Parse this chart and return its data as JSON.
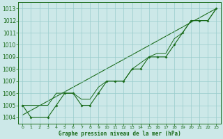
{
  "background_color": "#cce8e8",
  "grid_color": "#99cccc",
  "line_color": "#1a6b1a",
  "xlabel": "Graphe pression niveau de la mer (hPa)",
  "ylim": [
    1003.5,
    1013.5
  ],
  "xlim": [
    -0.5,
    23.5
  ],
  "yticks": [
    1004,
    1005,
    1006,
    1007,
    1008,
    1009,
    1010,
    1011,
    1012,
    1013
  ],
  "xticks": [
    0,
    1,
    2,
    3,
    4,
    5,
    6,
    7,
    8,
    9,
    10,
    11,
    12,
    13,
    14,
    15,
    16,
    17,
    18,
    19,
    20,
    21,
    22,
    23
  ],
  "series1": [
    1005.0,
    1004.0,
    null,
    1004.0,
    1005.0,
    1006.0,
    1006.0,
    1005.0,
    1005.0,
    1006.0,
    1007.0,
    1007.0,
    1007.0,
    1008.0,
    1008.0,
    1009.0,
    1009.0,
    1009.0,
    1010.0,
    1011.0,
    1012.0,
    1012.0,
    1012.0,
    1013.0
  ],
  "series2": [
    1005.0,
    null,
    null,
    1005.0,
    1006.0,
    1006.0,
    1006.0,
    1005.5,
    1005.5,
    1006.5,
    1007.0,
    1007.0,
    1007.0,
    1008.0,
    1008.5,
    1009.0,
    1009.3,
    1009.3,
    1010.5,
    1011.0,
    1012.0,
    1012.0,
    1012.0,
    1013.0
  ],
  "series3_x": [
    0,
    23
  ],
  "series3_y": [
    1004.2,
    1013.0
  ]
}
